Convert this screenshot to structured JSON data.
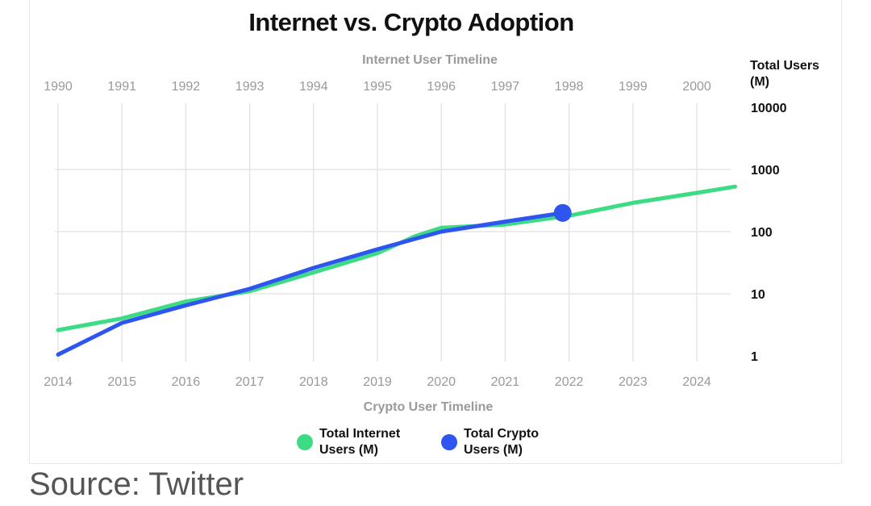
{
  "source_text": "Source: Twitter",
  "colors": {
    "internet": "#3ddc84",
    "crypto": "#2f55f0",
    "grid": "#e5e5e5",
    "tick": "#999999"
  },
  "chart_data": {
    "type": "line",
    "title": "Internet vs. Crypto Adoption",
    "top_axis_label": "Internet User Timeline",
    "bottom_axis_label": "Crypto User Timeline",
    "ylabel": "Total Users (M)",
    "yscale": "log",
    "ylim": [
      1,
      10000
    ],
    "y_ticks": [
      1,
      10,
      100,
      1000,
      10000
    ],
    "y_tick_labels": [
      "1",
      "10",
      "100",
      "1000",
      "10000"
    ],
    "top_ticks": [
      "1990",
      "1991",
      "1992",
      "1993",
      "1994",
      "1995",
      "1996",
      "1997",
      "1998",
      "1999",
      "2000"
    ],
    "bottom_ticks": [
      "2014",
      "2015",
      "2016",
      "2017",
      "2018",
      "2019",
      "2020",
      "2021",
      "2022",
      "2023",
      "2024"
    ],
    "grid": true,
    "legend_position": "bottom-center",
    "series": [
      {
        "name": "Total Internet Users (M)",
        "x": [
          2014,
          2015,
          2016,
          2017,
          2018,
          2019,
          2019.6,
          2020,
          2021,
          2022,
          2023,
          2024,
          2024.6
        ],
        "values": [
          2.6,
          4,
          7.5,
          11,
          22,
          45,
          85,
          115,
          130,
          180,
          290,
          420,
          530
        ]
      },
      {
        "name": "Total Crypto Users (M)",
        "x": [
          2014,
          2015,
          2016,
          2017,
          2018,
          2019,
          2020,
          2021,
          2021.9
        ],
        "values": [
          1.05,
          3.4,
          6.5,
          12,
          26,
          52,
          100,
          145,
          200
        ]
      }
    ]
  }
}
